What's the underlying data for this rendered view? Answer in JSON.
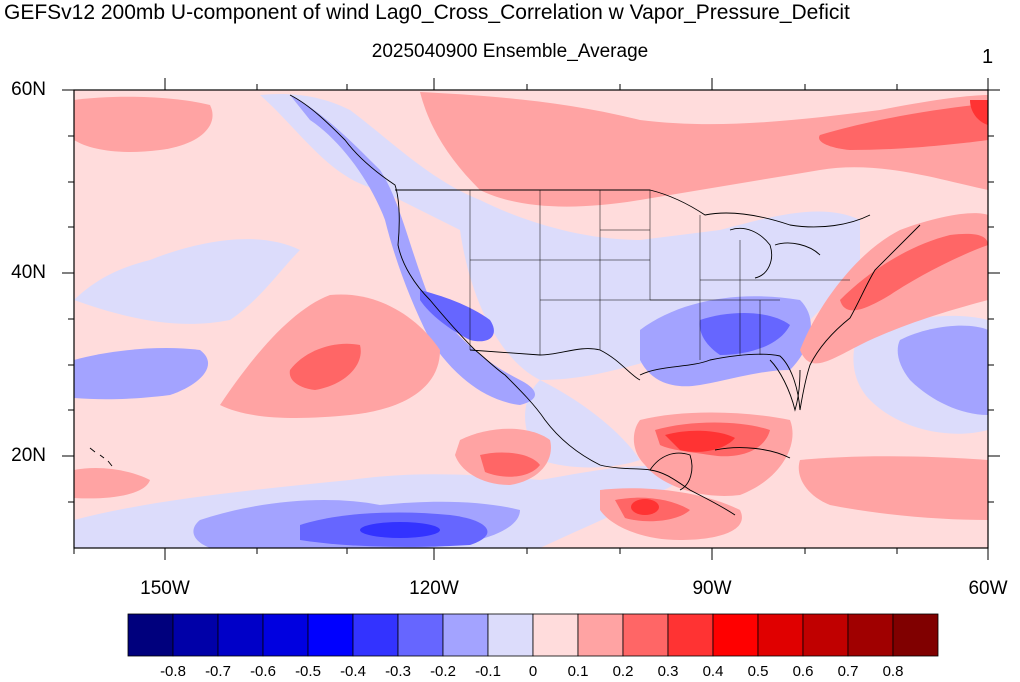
{
  "title": "GEFSv12 200mb U-component of wind Lag0_Cross_Correlation w Vapor_Pressure_Deficit",
  "subtitle": "2025040900 Ensemble_Average",
  "panel_number": "1",
  "map": {
    "projection": "cylindrical equidistant",
    "lon_range": [
      -160,
      -60
    ],
    "lat_range": [
      10,
      60
    ],
    "lat_labels": [
      "60N",
      "40N",
      "20N"
    ],
    "lon_labels": [
      "150W",
      "120W",
      "90W",
      "60W"
    ]
  },
  "colorbar": {
    "labels": [
      "-0.8",
      "-0.7",
      "-0.6",
      "-0.5",
      "-0.4",
      "-0.3",
      "-0.2",
      "-0.1",
      "0",
      "0.1",
      "0.2",
      "0.3",
      "0.4",
      "0.5",
      "0.6",
      "0.7",
      "0.8"
    ],
    "colors": [
      "#00007d",
      "#0000a8",
      "#0000c8",
      "#0000e0",
      "#0000ff",
      "#3333ff",
      "#6666ff",
      "#a3a3ff",
      "#dcdcfb",
      "#ffdcdc",
      "#ffa3a3",
      "#ff6666",
      "#ff3333",
      "#ff0000",
      "#e00000",
      "#c00000",
      "#a00000",
      "#800000"
    ]
  }
}
